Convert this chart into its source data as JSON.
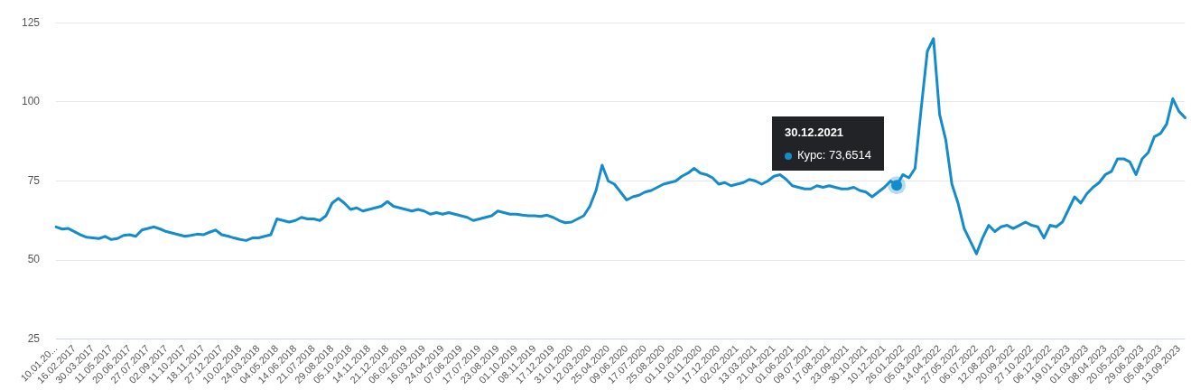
{
  "chart_data": {
    "type": "line",
    "categories": [
      "10.01.20...",
      null,
      null,
      "16.02.2017",
      null,
      null,
      "30.03.2017",
      null,
      null,
      "11.05.2017",
      null,
      null,
      "20.06.2017",
      null,
      null,
      "27.07.2017",
      null,
      null,
      "02.09.2017",
      null,
      null,
      "11.10.2017",
      null,
      null,
      "18.11.2017",
      null,
      null,
      "27.12.2017",
      null,
      null,
      "10.02.2018",
      null,
      null,
      "24.03.2018",
      null,
      null,
      "04.05.2018",
      null,
      null,
      "14.06.2018",
      null,
      null,
      "21.07.2018",
      null,
      null,
      "29.08.2018",
      null,
      null,
      "05.10.2018",
      null,
      null,
      "14.11.2018",
      null,
      null,
      "21.12.2018",
      null,
      null,
      "06.02.2019",
      null,
      null,
      "16.03.2019",
      null,
      null,
      "24.04.2019",
      null,
      null,
      "07.06.2019",
      null,
      null,
      "17.07.2019",
      null,
      null,
      "23.08.2019",
      null,
      null,
      "01.10.2019",
      null,
      null,
      "08.11.2019",
      null,
      null,
      "17.12.2019",
      null,
      null,
      "31.01.2020",
      null,
      null,
      "12.03.2020",
      null,
      null,
      "25.04.2020",
      null,
      null,
      "09.06.2020",
      null,
      null,
      "17.07.2020",
      null,
      null,
      "25.08.2020",
      null,
      null,
      "01.10.2020",
      null,
      null,
      "10.11.2020",
      null,
      null,
      "17.12.2020",
      null,
      null,
      "02.02.2021",
      null,
      null,
      "13.03.2021",
      null,
      null,
      "21.04.2021",
      null,
      null,
      "01.06.2021",
      null,
      null,
      "09.07.2021",
      null,
      null,
      "17.08.2021",
      null,
      null,
      "23.09.2021",
      null,
      null,
      "30.10.2021",
      null,
      null,
      "10.12.2021",
      null,
      null,
      "26.01.2022",
      null,
      null,
      "05.03.2022",
      null,
      null,
      "14.04.2022",
      null,
      null,
      "27.05.2022",
      null,
      null,
      "06.07.2022",
      null,
      null,
      "12.08.2022",
      null,
      null,
      "20.09.2022",
      null,
      null,
      "27.10.2022",
      null,
      null,
      "06.12.2022",
      null,
      null,
      "19.01.2023",
      null,
      null,
      "01.03.2023",
      null,
      null,
      "08.04.2023",
      null,
      null,
      "20.05.2023",
      null,
      null,
      "29.06.2023",
      null,
      null,
      "05.08.2023",
      null,
      null,
      "13.09.2023",
      null
    ],
    "series": [
      {
        "color": "#148ccc",
        "values": [
          60.5,
          59.8,
          60,
          59,
          58,
          57.2,
          57,
          56.8,
          57.5,
          56.5,
          56.8,
          57.8,
          58,
          57.5,
          59.5,
          60,
          60.5,
          59.8,
          59,
          58.5,
          58,
          57.5,
          57.8,
          58.2,
          58,
          58.8,
          59.5,
          58,
          57.6,
          57,
          56.5,
          56.2,
          57,
          57,
          57.5,
          58,
          63,
          62.5,
          62,
          62.5,
          63.5,
          63,
          63,
          62.5,
          64,
          68,
          69.5,
          68,
          66,
          66.5,
          65.5,
          66,
          66.5,
          67,
          68.5,
          67,
          66.5,
          66,
          65.5,
          66,
          65.5,
          64.5,
          65,
          64.5,
          65,
          64.5,
          64,
          63.5,
          62.5,
          63,
          63.5,
          64,
          65.5,
          65,
          64.5,
          64.5,
          64.2,
          64,
          64,
          63.8,
          64.2,
          63.5,
          62.5,
          61.8,
          62,
          63,
          64,
          67,
          72,
          80,
          75,
          74,
          71.5,
          69,
          70,
          70.5,
          71.5,
          72,
          73,
          74,
          74.5,
          75,
          76.5,
          77.5,
          79,
          77.5,
          77,
          76,
          74,
          74.5,
          73.5,
          74,
          74.5,
          75.5,
          75,
          74,
          75,
          76.5,
          77,
          75.5,
          73.5,
          73,
          72.5,
          72.5,
          73.5,
          73,
          73.5,
          73,
          72.5,
          72.5,
          73,
          72,
          71.5,
          70,
          71.5,
          73,
          75,
          73.6514,
          77,
          76,
          79,
          98,
          116,
          120,
          96,
          88,
          74,
          68,
          60,
          56,
          52,
          57,
          61,
          59,
          60.5,
          61,
          60,
          61,
          62,
          61,
          60.5,
          57,
          61,
          60.5,
          62,
          66,
          70,
          68,
          71,
          73,
          74.5,
          77,
          78,
          82,
          82,
          81,
          77,
          82,
          84,
          89,
          90,
          93,
          101,
          97,
          95
        ]
      }
    ],
    "ylim": [
      25,
      125
    ],
    "yticks": [
      25,
      50,
      75,
      100,
      125
    ],
    "grid": "y",
    "legend": false,
    "marker": "none",
    "line_style": "solid",
    "annotations": [
      {
        "text": "30.12.2021\nКурс: 73,6514",
        "y": 73.6514
      }
    ]
  }
}
